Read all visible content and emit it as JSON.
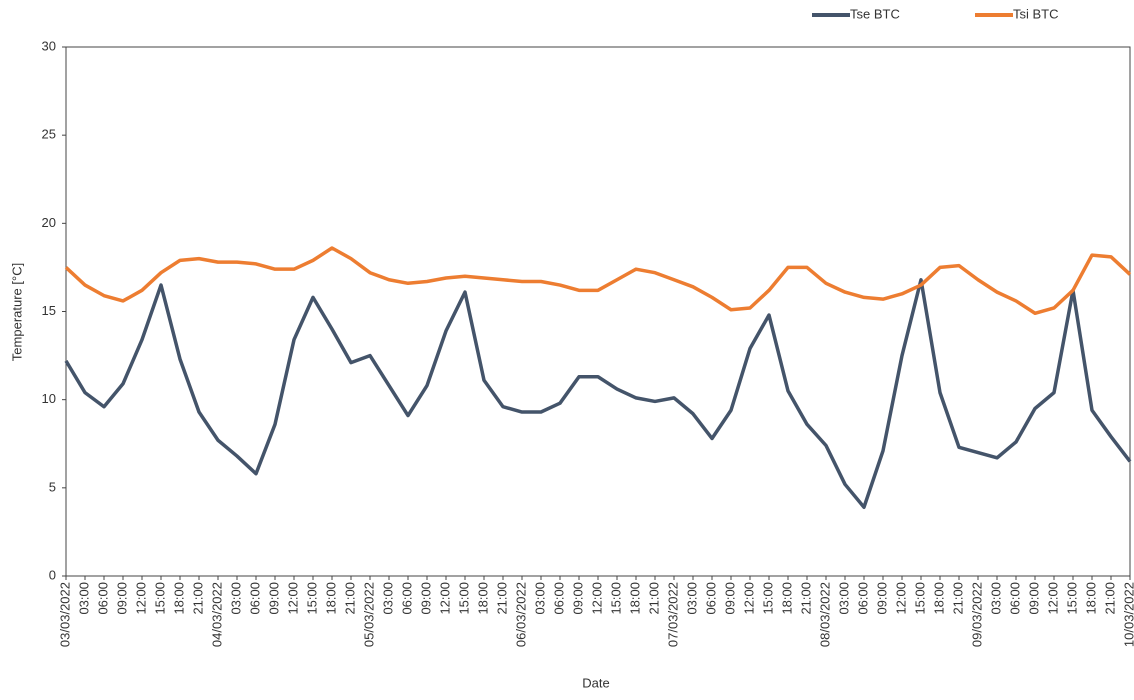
{
  "chart_data": {
    "type": "line",
    "xlabel": "Date",
    "ylabel": "Temperature [°C]",
    "categories": [
      "03/03/2022",
      "03:00",
      "06:00",
      "09:00",
      "12:00",
      "15:00",
      "18:00",
      "21:00",
      "04/03/2022",
      "03:00",
      "06:00",
      "09:00",
      "12:00",
      "15:00",
      "18:00",
      "21:00",
      "05/03/2022",
      "03:00",
      "06:00",
      "09:00",
      "12:00",
      "15:00",
      "18:00",
      "21:00",
      "06/03/2022",
      "03:00",
      "06:00",
      "09:00",
      "12:00",
      "15:00",
      "18:00",
      "21:00",
      "07/03/2022",
      "03:00",
      "06:00",
      "09:00",
      "12:00",
      "15:00",
      "18:00",
      "21:00",
      "08/03/2022",
      "03:00",
      "06:00",
      "09:00",
      "12:00",
      "15:00",
      "18:00",
      "21:00",
      "09/03/2022",
      "03:00",
      "06:00",
      "09:00",
      "12:00",
      "15:00",
      "18:00",
      "21:00",
      "10/03/2022"
    ],
    "series": [
      {
        "name": "Tse BTC",
        "color": "#44546a",
        "values": [
          12.2,
          10.4,
          9.6,
          10.9,
          13.4,
          16.5,
          12.3,
          9.3,
          7.7,
          6.8,
          5.8,
          8.6,
          13.4,
          15.8,
          14.0,
          12.1,
          12.5,
          10.8,
          9.1,
          10.8,
          13.9,
          16.1,
          11.1,
          9.6,
          9.3,
          9.3,
          9.8,
          11.3,
          11.3,
          10.6,
          10.1,
          9.9,
          10.1,
          9.2,
          7.8,
          9.4,
          12.9,
          14.8,
          10.5,
          8.6,
          7.4,
          5.2,
          3.9,
          7.1,
          12.5,
          16.8,
          10.4,
          7.3,
          7.0,
          6.7,
          7.6,
          9.5,
          10.4,
          16.2,
          9.4,
          7.9,
          6.5
        ]
      },
      {
        "name": "Tsi BTC",
        "color": "#ed7d31",
        "values": [
          17.5,
          16.5,
          15.9,
          15.6,
          16.2,
          17.2,
          17.9,
          18.0,
          17.8,
          17.8,
          17.7,
          17.4,
          17.4,
          17.9,
          18.6,
          18.0,
          17.2,
          16.8,
          16.6,
          16.7,
          16.9,
          17.0,
          16.9,
          16.8,
          16.7,
          16.7,
          16.5,
          16.2,
          16.2,
          16.8,
          17.4,
          17.2,
          16.8,
          16.4,
          15.8,
          15.1,
          15.2,
          16.2,
          17.5,
          17.5,
          16.6,
          16.1,
          15.8,
          15.7,
          16.0,
          16.5,
          17.5,
          17.6,
          16.8,
          16.1,
          15.6,
          14.9,
          15.2,
          16.2,
          18.2,
          18.1,
          17.1
        ]
      }
    ],
    "ylim": [
      0,
      30
    ],
    "yticks": [
      0,
      5,
      10,
      15,
      20,
      25,
      30
    ],
    "grid": false,
    "legend": "top-right"
  }
}
